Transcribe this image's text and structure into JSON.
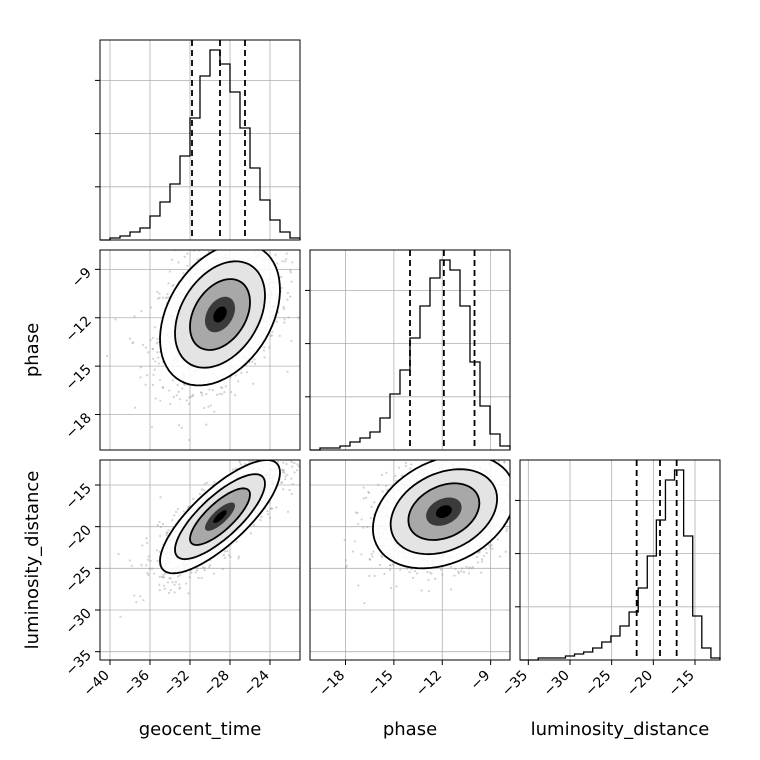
{
  "chart_data": {
    "type": "corner",
    "parameters": [
      {
        "name": "geocent_time",
        "range": [
          -41,
          -21
        ],
        "ticks": [
          -40,
          -36,
          -32,
          -28,
          -24
        ],
        "quantiles": [
          -31.8,
          -29.0,
          -26.5
        ]
      },
      {
        "name": "phase",
        "range": [
          -20.2,
          -7.8
        ],
        "ticks": [
          -18,
          -15,
          -12,
          -9
        ],
        "quantiles": [
          -14.0,
          -11.9,
          -10.0
        ]
      },
      {
        "name": "luminosity_distance",
        "range": [
          -36,
          -12
        ],
        "ticks": [
          -35,
          -30,
          -25,
          -20,
          -15
        ],
        "quantiles": [
          -22.0,
          -19.2,
          -17.2
        ]
      }
    ],
    "tick_labels": {
      "geocent_time": [
        "−40",
        "−36",
        "−32",
        "−28",
        "−24"
      ],
      "phase": [
        "−18",
        "−15",
        "−12",
        "−9"
      ],
      "luminosity_distance": [
        "−35",
        "−30",
        "−25",
        "−20",
        "−15"
      ]
    },
    "histograms": {
      "geocent_time": [
        0,
        1,
        2,
        4,
        6,
        12,
        19,
        28,
        42,
        61,
        82,
        95,
        88,
        74,
        56,
        36,
        20,
        10,
        4,
        1
      ],
      "phase": [
        0,
        1,
        1,
        2,
        4,
        6,
        9,
        16,
        28,
        40,
        56,
        72,
        86,
        95,
        90,
        72,
        44,
        22,
        8,
        2
      ],
      "luminosity_distance": [
        0,
        0,
        1,
        1,
        1,
        2,
        3,
        4,
        6,
        9,
        12,
        17,
        24,
        36,
        52,
        70,
        90,
        95,
        62,
        22,
        6,
        1
      ]
    },
    "correlations": {
      "phase|geocent_time": {
        "mean": [
          -29.0,
          -11.8
        ],
        "sd": [
          3.0,
          2.2
        ],
        "rho": 0.35
      },
      "luminosity_distance|geocent_time": {
        "mean": [
          -29.0,
          -18.8
        ],
        "sd": [
          3.0,
          3.4
        ],
        "rho": 0.78
      },
      "luminosity_distance|phase": {
        "mean": [
          -11.9,
          -18.2
        ],
        "sd": [
          2.2,
          3.4
        ],
        "rho": 0.3
      }
    },
    "contour_levels": [
      "0.5",
      "1.0",
      "1.5",
      "2.0"
    ],
    "grid": true,
    "colors": {
      "line": "#000000",
      "points": "#9a9a9a",
      "grid": "#b0b0b0",
      "frame": "#000000"
    }
  }
}
